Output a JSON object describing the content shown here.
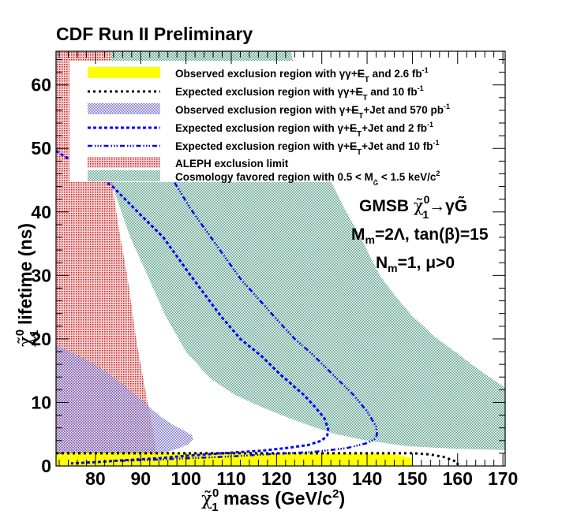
{
  "chart_data": {
    "type": "area",
    "title": "CDF Run II Preliminary",
    "xlabel": "χ̃₁⁰ mass (GeV/c²)",
    "xlabel_parts": {
      "symbol": "χ̃",
      "sup": "0",
      "sub": "1",
      "text": " mass (GeV/c",
      "sup2": "2",
      "end": ")"
    },
    "ylabel": "χ̃₁⁰ lifetime (ns)",
    "ylabel_parts": {
      "symbol": "χ̃",
      "sup": "0",
      "sub": "1",
      "text": " lifetime (ns)"
    },
    "xlim": [
      71.3,
      170.5
    ],
    "ylim": [
      0,
      65.3
    ],
    "x_ticks": [
      80,
      90,
      100,
      110,
      120,
      130,
      140,
      150,
      160,
      170
    ],
    "y_ticks": [
      0,
      10,
      20,
      30,
      40,
      50,
      60
    ],
    "grid": false,
    "legend_position": "top",
    "colors": {
      "observed_diphoton": "#ffff00",
      "expected_diphoton": "#000000",
      "observed_jet": "#7b6fc6",
      "expected_jet": "#0000ff",
      "aleph": "#d04040",
      "cosmology": "#8fc0ae"
    },
    "series": [
      {
        "name": "Observed exclusion region with γγ+E̸T and 2.6 fb-1",
        "legend": {
          "pre": "Observed exclusion region with γγ+",
          "met": "E",
          "sub": "T",
          "post": " and 2.6 fb",
          "sup": "-1"
        },
        "kind": "fill",
        "style": "yellow",
        "points": [
          [
            71.3,
            0
          ],
          [
            71.3,
            2.0
          ],
          [
            100,
            2.0
          ],
          [
            130,
            2.0
          ],
          [
            145,
            1.9
          ],
          [
            148,
            1.6
          ],
          [
            150,
            1.2
          ],
          [
            150,
            0
          ]
        ]
      },
      {
        "name": "Expected exclusion region with γγ+E̸T and 10 fb-1",
        "legend": {
          "pre": "Expected exclusion region with γγ+",
          "met": "E",
          "sub": "T",
          "post": " and 10 fb",
          "sup": "-1"
        },
        "kind": "line",
        "style": "black-dotted",
        "points": [
          [
            71.3,
            2.0
          ],
          [
            100,
            2.0
          ],
          [
            130,
            2.0
          ],
          [
            150.5,
            2.0
          ],
          [
            154,
            1.8
          ],
          [
            157,
            1.4
          ],
          [
            160,
            0.6
          ],
          [
            160,
            0
          ]
        ]
      },
      {
        "name": "Observed exclusion region with γ+E̸T+Jet and 570 pb-1",
        "legend": {
          "pre": "Observed exclusion region with γ+",
          "met": "E",
          "sub": "T",
          "post": "+Jet and 570 pb",
          "sup": "-1"
        },
        "kind": "fill",
        "style": "purple-hatch",
        "points": [
          [
            71.3,
            0
          ],
          [
            71.3,
            19.0
          ],
          [
            75,
            17.8
          ],
          [
            80,
            16.0
          ],
          [
            85,
            13.5
          ],
          [
            90,
            10.5
          ],
          [
            94,
            8.0
          ],
          [
            97,
            6.5
          ],
          [
            99.5,
            5.6
          ],
          [
            101.3,
            4.8
          ],
          [
            101.6,
            4.2
          ],
          [
            100.5,
            3.4
          ],
          [
            98,
            2.7
          ],
          [
            95,
            2.0
          ],
          [
            92,
            0.3
          ],
          [
            71.3,
            0.3
          ]
        ]
      },
      {
        "name": "Expected exclusion region with γ+E̸T+Jet and 2 fb-1",
        "legend": {
          "pre": "Expected exclusion region with γ+",
          "met": "E",
          "sub": "T",
          "post": "+Jet and 2 fb",
          "sup": "-1"
        },
        "kind": "line",
        "style": "blue-dashed",
        "points": [
          [
            71.3,
            49.6
          ],
          [
            76,
            47.5
          ],
          [
            80,
            45.8
          ],
          [
            83.8,
            44.0
          ],
          [
            90,
            39.5
          ],
          [
            95,
            36.0
          ],
          [
            101,
            30.0
          ],
          [
            107.7,
            23.6
          ],
          [
            112,
            20.0
          ],
          [
            116.5,
            17.4
          ],
          [
            121,
            14.3
          ],
          [
            126,
            11.2
          ],
          [
            128.5,
            9.3
          ],
          [
            130.6,
            7.5
          ],
          [
            131.4,
            5.8
          ],
          [
            131.2,
            4.8
          ],
          [
            130,
            4.0
          ],
          [
            127,
            3.3
          ],
          [
            122,
            2.8
          ],
          [
            116.5,
            2.4
          ],
          [
            108,
            2.0
          ],
          [
            100,
            1.6
          ],
          [
            93.7,
            1.2
          ],
          [
            86,
            0.9
          ],
          [
            80,
            0.6
          ],
          [
            74.6,
            0.4
          ]
        ]
      },
      {
        "name": "Expected exclusion region with γ+E̸T+Jet and 10 fb-1",
        "legend": {
          "pre": "Expected exclusion region with γ+",
          "met": "E",
          "sub": "T",
          "post": "+Jet and 10 fb",
          "sup": "-1"
        },
        "kind": "line",
        "style": "blue-dashdot",
        "points": [
          [
            97.5,
            44.6
          ],
          [
            101,
            40.5
          ],
          [
            105.5,
            36.0
          ],
          [
            112,
            29.5
          ],
          [
            119.4,
            23.6
          ],
          [
            124,
            20.0
          ],
          [
            128.2,
            17.4
          ],
          [
            133,
            14.0
          ],
          [
            137,
            11.2
          ],
          [
            140,
            8.6
          ],
          [
            142,
            6.2
          ],
          [
            142.2,
            5.0
          ],
          [
            141.8,
            4.3
          ],
          [
            140,
            3.6
          ],
          [
            135.5,
            2.8
          ],
          [
            128,
            2.2
          ],
          [
            119.4,
            1.9
          ],
          [
            110,
            1.5
          ],
          [
            100,
            1.2
          ],
          [
            93.7,
            1.0
          ],
          [
            85,
            0.8
          ]
        ]
      },
      {
        "name": "ALEPH exclusion limit",
        "legend": {
          "pre": "ALEPH exclusion limit"
        },
        "kind": "fill",
        "style": "red-hatch",
        "points": [
          [
            71.3,
            0
          ],
          [
            71.3,
            65.3
          ],
          [
            83.5,
            65.3
          ],
          [
            83.8,
            44.0
          ],
          [
            85,
            38.0
          ],
          [
            87,
            30.0
          ],
          [
            89,
            20.0
          ],
          [
            90.5,
            14.0
          ],
          [
            91.5,
            10.0
          ],
          [
            92.9,
            5.0
          ],
          [
            93.3,
            2.0
          ],
          [
            95,
            1.0
          ],
          [
            97,
            0
          ],
          [
            71.3,
            0
          ]
        ]
      },
      {
        "name": "Cosmology favored region with 0.5 < M_G̃ < 1.5 keV/c2",
        "legend": {
          "pre": "Cosmology favored region with 0.5 < M",
          "subG": "G̃",
          "post": " < 1.5 keV/c",
          "sup": "2"
        },
        "kind": "fill",
        "style": "green-hatch",
        "points": [
          [
            82.7,
            65.3
          ],
          [
            123.2,
            65.3
          ],
          [
            126,
            55.0
          ],
          [
            129,
            49.0
          ],
          [
            132.1,
            44.7
          ],
          [
            135,
            40.5
          ],
          [
            138.6,
            36.0
          ],
          [
            141,
            32.5
          ],
          [
            143,
            29.8
          ],
          [
            146.5,
            26.5
          ],
          [
            150,
            23.6
          ],
          [
            155,
            20.3
          ],
          [
            160.5,
            17.4
          ],
          [
            165,
            15.0
          ],
          [
            170.5,
            12.3
          ],
          [
            170.5,
            2.5
          ],
          [
            160,
            2.7
          ],
          [
            149,
            3.1
          ],
          [
            140,
            4.0
          ],
          [
            133.2,
            5.0
          ],
          [
            128,
            6.2
          ],
          [
            123,
            7.5
          ],
          [
            117,
            9.2
          ],
          [
            110.8,
            11.2
          ],
          [
            105.5,
            13.7
          ],
          [
            100,
            18.0
          ],
          [
            95.5,
            23.6
          ],
          [
            91.5,
            30.0
          ],
          [
            87.7,
            36.0
          ],
          [
            83.8,
            44.0
          ],
          [
            83,
            50.0
          ],
          [
            82.7,
            65.3
          ]
        ]
      }
    ],
    "annotations": {
      "line1": {
        "pre": "GMSB ",
        "sym": "χ̃",
        "sup": "0",
        "sub": "1",
        "post": "→γG̃"
      },
      "line2": {
        "pre": "M",
        "sub": "m",
        "post": "=2Λ, tan(β)=15"
      },
      "line3": {
        "pre": "N",
        "sub": "m",
        "post": "=1, μ>0"
      }
    }
  }
}
